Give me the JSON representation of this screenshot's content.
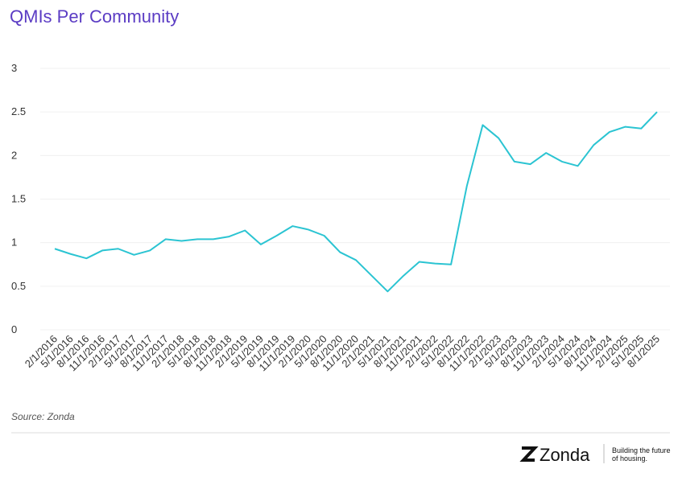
{
  "chart_data": {
    "type": "line",
    "title": "QMIs Per Community",
    "categories": [
      "2/1/2016",
      "5/1/2016",
      "8/1/2016",
      "11/1/2016",
      "2/1/2017",
      "5/1/2017",
      "8/1/2017",
      "11/1/2017",
      "2/1/2018",
      "5/1/2018",
      "8/1/2018",
      "11/1/2018",
      "2/1/2019",
      "5/1/2019",
      "8/1/2019",
      "11/1/2019",
      "2/1/2020",
      "5/1/2020",
      "8/1/2020",
      "11/1/2020",
      "2/1/2021",
      "5/1/2021",
      "8/1/2021",
      "11/1/2021",
      "2/1/2022",
      "5/1/2022",
      "8/1/2022",
      "11/1/2022",
      "2/1/2023",
      "5/1/2023",
      "8/1/2023",
      "11/1/2023",
      "2/1/2024",
      "5/1/2024",
      "8/1/2024",
      "11/1/2024",
      "2/1/2025",
      "5/1/2025",
      "8/1/2025"
    ],
    "series": [
      {
        "name": "QMIs Per Community",
        "color": "#2bc4d2",
        "values": [
          0.93,
          0.87,
          0.82,
          0.91,
          0.93,
          0.86,
          0.91,
          1.04,
          1.02,
          1.04,
          1.04,
          1.07,
          1.14,
          0.98,
          1.08,
          1.19,
          1.15,
          1.08,
          0.89,
          0.8,
          0.62,
          0.44,
          0.62,
          0.78,
          0.76,
          0.75,
          1.65,
          2.35,
          2.2,
          1.93,
          1.9,
          2.03,
          1.93,
          1.88,
          2.12,
          2.27,
          2.33,
          2.31,
          2.5
        ]
      }
    ],
    "ylim": [
      0,
      3
    ],
    "yticks": [
      0,
      0.5,
      1,
      1.5,
      2,
      2.5,
      3
    ],
    "grid": true,
    "source": "Source: Zonda",
    "brand": "Zonda",
    "tagline": [
      "Building the future",
      "of housing."
    ]
  }
}
